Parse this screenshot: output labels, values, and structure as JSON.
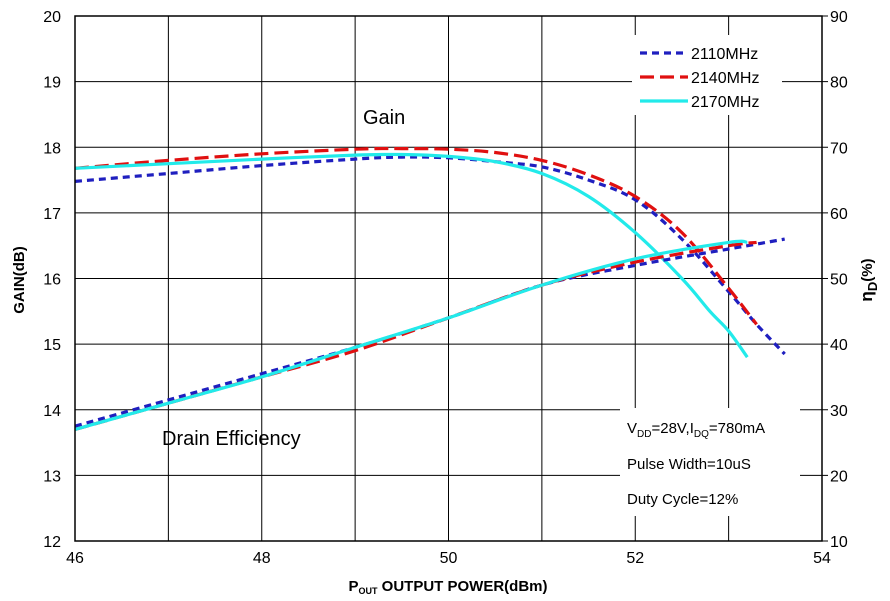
{
  "chart_data": {
    "type": "line",
    "x_axis": {
      "label_main": "P",
      "label_sub": "OUT",
      "label_rest": " OUTPUT POWER(dBm)",
      "range": [
        46,
        54
      ],
      "ticks": [
        "46",
        "48",
        "50",
        "52",
        "54"
      ]
    },
    "y_axis_left": {
      "label": "GAIN(dB)",
      "range": [
        12,
        20
      ],
      "ticks": [
        "12",
        "13",
        "14",
        "15",
        "16",
        "17",
        "18",
        "19",
        "20"
      ]
    },
    "y_axis_right": {
      "label_main": "η",
      "label_sub": "D",
      "label_rest": "(%)",
      "range": [
        10,
        90
      ],
      "ticks": [
        "10",
        "20",
        "30",
        "40",
        "50",
        "60",
        "70",
        "80",
        "90"
      ]
    },
    "grid": true,
    "legend_position": "top-right",
    "legend": [
      {
        "name": "2110MHz",
        "color": "#1f1fbf",
        "dash": "7,5"
      },
      {
        "name": "2140MHz",
        "color": "#e01010",
        "dash": "14,6"
      },
      {
        "name": "2170MHz",
        "color": "#22eaea",
        "dash": ""
      }
    ],
    "annotations": {
      "gain_label": "Gain",
      "efficiency_label": "Drain Efficiency",
      "cond_vdd_v": "V",
      "cond_vdd_sub": "DD",
      "cond_vdd_rest": "=28V,I",
      "cond_idq_sub": "DQ",
      "cond_idq_rest": "=780mA",
      "pulse_width": "Pulse Width=10uS",
      "duty_cycle": "Duty Cycle=12%"
    },
    "series": [
      {
        "name": "2110MHz",
        "quantity": "gain",
        "axis": "left",
        "x": [
          46,
          47,
          48,
          49,
          49.5,
          50,
          50.5,
          51,
          51.5,
          52,
          52.5,
          53,
          53.3,
          53.6
        ],
        "y": [
          17.48,
          17.6,
          17.72,
          17.82,
          17.85,
          17.84,
          17.78,
          17.7,
          17.5,
          17.2,
          16.6,
          15.8,
          15.3,
          14.85
        ]
      },
      {
        "name": "2140MHz",
        "quantity": "gain",
        "axis": "left",
        "x": [
          46,
          47,
          48,
          49,
          49.5,
          50,
          50.5,
          51,
          51.5,
          52,
          52.5,
          53,
          53.3
        ],
        "y": [
          17.68,
          17.8,
          17.9,
          17.97,
          17.98,
          17.97,
          17.92,
          17.8,
          17.58,
          17.25,
          16.7,
          15.85,
          15.3
        ]
      },
      {
        "name": "2170MHz",
        "quantity": "gain",
        "axis": "left",
        "x": [
          46,
          47,
          48,
          49,
          49.5,
          50,
          50.5,
          51,
          51.5,
          52,
          52.5,
          52.8,
          53,
          53.2
        ],
        "y": [
          17.68,
          17.75,
          17.82,
          17.88,
          17.89,
          17.86,
          17.78,
          17.6,
          17.25,
          16.7,
          16.0,
          15.5,
          15.2,
          14.8
        ]
      },
      {
        "name": "2110MHz",
        "quantity": "drain efficiency",
        "axis": "right",
        "x": [
          46,
          47,
          48,
          49,
          50,
          51,
          52,
          53,
          53.6
        ],
        "y": [
          27.5,
          31.5,
          35.5,
          39.5,
          44,
          49,
          52,
          54.5,
          56
        ]
      },
      {
        "name": "2140MHz",
        "quantity": "drain efficiency",
        "axis": "right",
        "x": [
          46,
          47,
          48,
          49,
          50,
          51,
          52,
          53,
          53.3
        ],
        "y": [
          27,
          31,
          35,
          39,
          44,
          49,
          52.5,
          55,
          55.5
        ]
      },
      {
        "name": "2170MHz",
        "quantity": "drain efficiency",
        "axis": "right",
        "x": [
          46,
          47,
          48,
          49,
          50,
          51,
          52,
          53,
          53.2
        ],
        "y": [
          27,
          31,
          35,
          39.5,
          44,
          49,
          53,
          55.5,
          55.5
        ]
      }
    ]
  }
}
